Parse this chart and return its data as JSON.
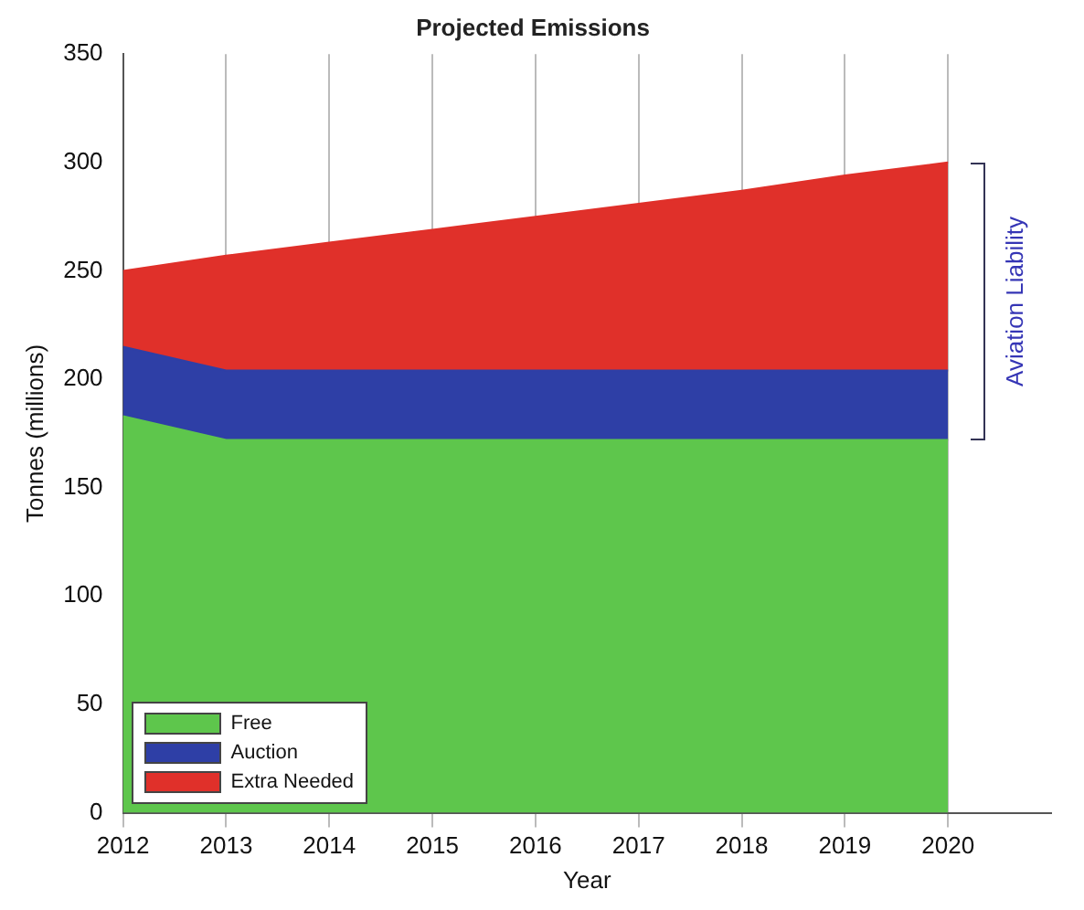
{
  "chart_data": {
    "type": "area",
    "title": "Projected Emissions",
    "xlabel": "Year",
    "ylabel": "Tonnes (millions)",
    "stacked": true,
    "x": [
      2012,
      2013,
      2014,
      2015,
      2016,
      2017,
      2018,
      2019,
      2020
    ],
    "series": [
      {
        "name": "Free",
        "color": "#5ec64c",
        "values": [
          183,
          172,
          172,
          172,
          172,
          172,
          172,
          172,
          172
        ]
      },
      {
        "name": "Auction",
        "color": "#2e3fa6",
        "values": [
          32,
          32,
          32,
          32,
          32,
          32,
          32,
          32,
          32
        ]
      },
      {
        "name": "Extra Needed",
        "color": "#e0302a",
        "values": [
          35,
          53,
          59,
          65,
          71,
          77,
          83,
          90,
          96
        ]
      }
    ],
    "xlim": [
      2012,
      2021
    ],
    "xticks": [
      2012,
      2013,
      2014,
      2015,
      2016,
      2017,
      2018,
      2019,
      2020
    ],
    "ylim": [
      0,
      350
    ],
    "yticks": [
      0,
      50,
      100,
      150,
      200,
      250,
      300,
      350
    ],
    "grid": "x",
    "legend": "bottom left",
    "annotations": [
      "Aviation Liability"
    ]
  }
}
